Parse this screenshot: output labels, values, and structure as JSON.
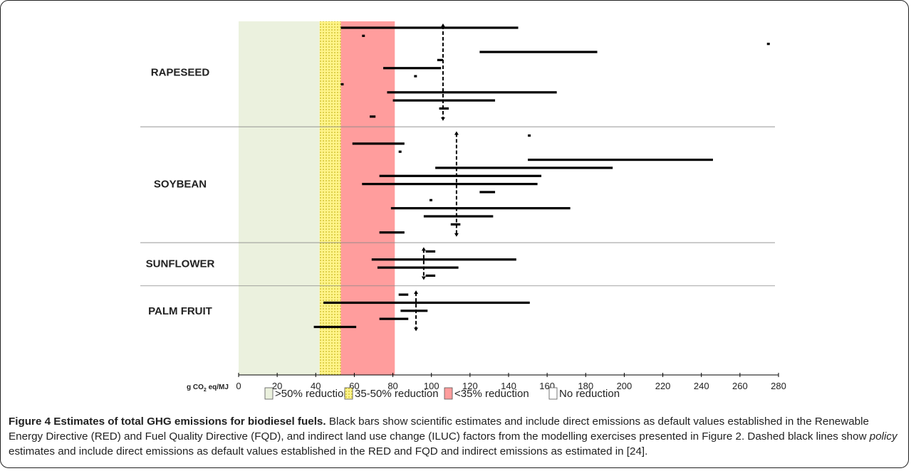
{
  "chart_data": {
    "type": "bar",
    "xlim": [
      0,
      280
    ],
    "xticks": [
      0,
      20,
      40,
      60,
      80,
      100,
      120,
      140,
      160,
      180,
      200,
      220,
      240,
      260,
      280
    ],
    "xlabel": "g CO2 eq/MJ",
    "xlabel_parts": {
      "base": "g CO",
      "sub": "2",
      "rest": " eq/MJ"
    },
    "bands": [
      {
        "label": ">50% reduction",
        "from": 0,
        "to": 42,
        "color": "#ebf1de",
        "pattern": "none"
      },
      {
        "label": "35-50% reduction",
        "from": 42,
        "to": 53,
        "color": "#fff48a",
        "pattern": "dots"
      },
      {
        "label": "<35% reduction",
        "from": 53,
        "to": 81,
        "color": "#ff9d9d",
        "pattern": "none"
      },
      {
        "label": "No reduction",
        "from": 81,
        "to": 280,
        "color": "#ffffff",
        "pattern": "none"
      }
    ],
    "categories": [
      {
        "name": "RAPESEED",
        "policy": 106,
        "estimates": [
          [
            53,
            145
          ],
          [
            64,
            65
          ],
          [
            274,
            275
          ],
          [
            125,
            186
          ],
          [
            103,
            106
          ],
          [
            75,
            105
          ],
          [
            91,
            92
          ],
          [
            53,
            54
          ],
          [
            77,
            165
          ],
          [
            80,
            133
          ],
          [
            104,
            109
          ],
          [
            68,
            71
          ]
        ]
      },
      {
        "name": "SOYBEAN",
        "policy": 113,
        "estimates": [
          [
            150,
            151
          ],
          [
            59,
            86
          ],
          [
            83,
            84
          ],
          [
            150,
            246
          ],
          [
            102,
            194
          ],
          [
            73,
            157
          ],
          [
            64,
            155
          ],
          [
            125,
            133
          ],
          [
            99,
            100
          ],
          [
            79,
            172
          ],
          [
            96,
            132
          ],
          [
            110,
            115
          ],
          [
            73,
            86
          ]
        ]
      },
      {
        "name": "SUNFLOWER",
        "policy": 96,
        "estimates": [
          [
            97,
            102
          ],
          [
            69,
            144
          ],
          [
            72,
            114
          ],
          [
            97,
            102
          ]
        ]
      },
      {
        "name": "PALM FRUIT",
        "policy": 92,
        "estimates": [
          [
            83,
            88
          ],
          [
            44,
            151
          ],
          [
            84,
            98
          ],
          [
            73,
            88
          ],
          [
            39,
            61
          ]
        ]
      }
    ]
  },
  "caption": {
    "title": "Figure 4 Estimates of total GHG emissions for biodiesel fuels.",
    "body_1": " Black bars show scientific estimates and include direct emissions as default values established in the Renewable Energy Directive (RED) and Fuel Quality Directive (FQD), and indirect land use change (ILUC) factors from the modelling exercises presented in Figure 2. Dashed black lines show ",
    "emphasis": "policy",
    "body_2": " estimates and include direct emissions as default values established in the RED and FQD and indirect emissions as estimated in [24]."
  }
}
